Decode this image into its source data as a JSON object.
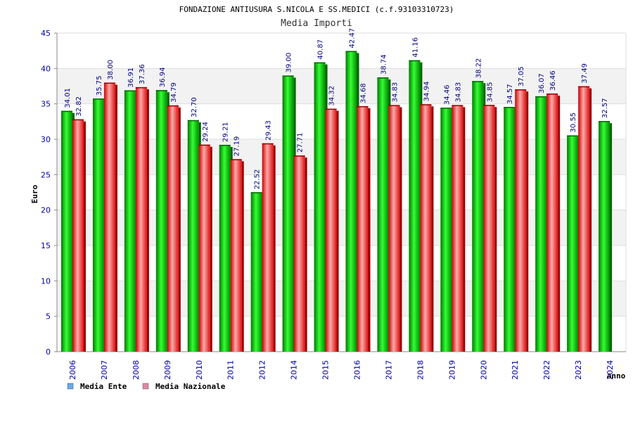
{
  "chart_data": {
    "type": "bar",
    "title": "FONDAZIONE ANTIUSURA S.NICOLA E SS.MEDICI (c.f.93103310723)",
    "subtitle": "Media Importi",
    "xlabel": "anno",
    "ylabel": "Euro",
    "ylim": [
      0,
      45
    ],
    "yticks": [
      0,
      5,
      10,
      15,
      20,
      25,
      30,
      35,
      40,
      45
    ],
    "grid": true,
    "legend_position": "bottom-left",
    "categories": [
      "2006",
      "2007",
      "2008",
      "2009",
      "2010",
      "2011",
      "2012",
      "2014",
      "2015",
      "2016",
      "2017",
      "2018",
      "2019",
      "2020",
      "2021",
      "2022",
      "2023",
      "2024"
    ],
    "series": [
      {
        "name": "Media Ente",
        "color": "#00c000",
        "legend_color": "#66aaee",
        "values": [
          34.01,
          35.75,
          36.91,
          36.94,
          32.7,
          29.21,
          22.52,
          39.0,
          40.87,
          42.47,
          38.74,
          41.16,
          34.46,
          38.22,
          34.57,
          36.07,
          30.55,
          32.57
        ],
        "labels": [
          "34.01",
          "35.75",
          "36.91",
          "36.94",
          "32.70",
          "29.21",
          "22.52",
          "39.00",
          "40.87",
          "42.47",
          "38.74",
          "41.16",
          "34.46",
          "38.22",
          "34.57",
          "36.07",
          "30.55",
          "32.57"
        ]
      },
      {
        "name": "Media Nazionale",
        "color": "#ee2222",
        "legend_color": "#dd88aa",
        "values": [
          32.82,
          38.0,
          37.36,
          34.79,
          29.24,
          27.19,
          29.43,
          27.71,
          34.32,
          34.68,
          34.83,
          34.94,
          34.83,
          34.85,
          37.05,
          36.46,
          37.49,
          null
        ],
        "labels": [
          "32.82",
          "38.00",
          "37.36",
          "34.79",
          "29.24",
          "27.19",
          "29.43",
          "27.71",
          "34.32",
          "34.68",
          "34.83",
          "34.94",
          "34.83",
          "34.85",
          "37.05",
          "36.46",
          "37.49",
          ""
        ]
      }
    ]
  }
}
